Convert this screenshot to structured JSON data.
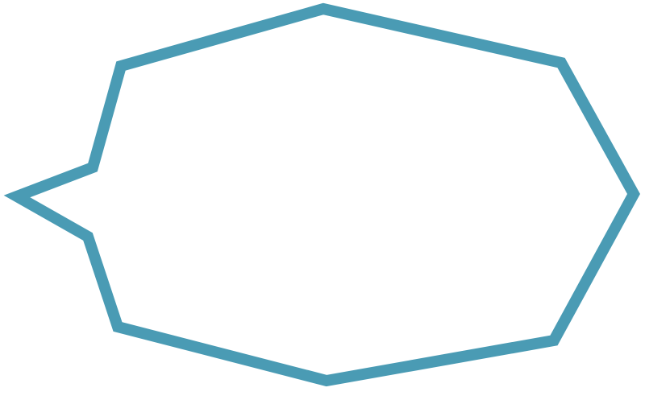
{
  "shape": {
    "type": "speech-bubble-polygon",
    "stroke_color": "#4a9bb4",
    "fill_color": "#ffffff",
    "pointer_direction": "left"
  }
}
